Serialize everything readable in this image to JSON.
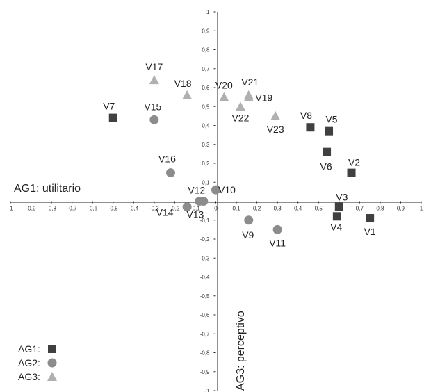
{
  "chart_data": {
    "type": "scatter",
    "xlabel": "AG1: utilitario",
    "ylabel": "AG3: perceptivo",
    "xlim": [
      -1,
      1
    ],
    "ylim": [
      -1,
      1
    ],
    "xticks": [
      "-1",
      "-0,9",
      "-0,8",
      "-0,7",
      "-0,6",
      "-0,5",
      "-0,4",
      "-0,3",
      "-0,2",
      "-0,1",
      "0",
      "0,1",
      "0,2",
      "0,3",
      "0,4",
      "0,5",
      "0,6",
      "0,7",
      "0,8",
      "0,9",
      "1"
    ],
    "yticks": [
      "1",
      "0,9",
      "0,8",
      "0,7",
      "0,6",
      "0,5",
      "0,4",
      "0,3",
      "0,2",
      "0,1",
      "-0,1",
      "-0,2",
      "-0,3",
      "-0,4",
      "-0,5",
      "-0,6",
      "-0,7",
      "-0,8",
      "-0,9",
      "-1"
    ],
    "grid": false,
    "legend_position": "bottom-left",
    "series": [
      {
        "name": "AG1:",
        "marker": "square",
        "color": "#404040",
        "points": [
          {
            "label": "V1",
            "x": 0.75,
            "y": -0.09
          },
          {
            "label": "V2",
            "x": 0.66,
            "y": 0.15
          },
          {
            "label": "V3",
            "x": 0.6,
            "y": -0.03
          },
          {
            "label": "V4",
            "x": 0.59,
            "y": -0.08
          },
          {
            "label": "V5",
            "x": 0.55,
            "y": 0.37
          },
          {
            "label": "V6",
            "x": 0.54,
            "y": 0.26
          },
          {
            "label": "V7",
            "x": -0.5,
            "y": 0.44
          },
          {
            "label": "V8",
            "x": 0.46,
            "y": 0.39
          }
        ]
      },
      {
        "name": "AG2:",
        "marker": "circle",
        "color": "#8c8c8c",
        "points": [
          {
            "label": "V9",
            "x": 0.16,
            "y": -0.1
          },
          {
            "label": "V10",
            "x": 0.0,
            "y": 0.06
          },
          {
            "label": "V11",
            "x": 0.3,
            "y": -0.15
          },
          {
            "label": "V12",
            "x": -0.06,
            "y": 0.0
          },
          {
            "label": "V13",
            "x": -0.08,
            "y": 0.0
          },
          {
            "label": "V14",
            "x": -0.14,
            "y": -0.03
          },
          {
            "label": "V15",
            "x": -0.3,
            "y": 0.43
          },
          {
            "label": "V16",
            "x": -0.22,
            "y": 0.15
          }
        ]
      },
      {
        "name": "AG3:",
        "marker": "triangle",
        "color": "#b0b0b0",
        "points": [
          {
            "label": "V17",
            "x": -0.3,
            "y": 0.64
          },
          {
            "label": "V18",
            "x": -0.14,
            "y": 0.56
          },
          {
            "label": "V19",
            "x": 0.16,
            "y": 0.55
          },
          {
            "label": "V20",
            "x": 0.04,
            "y": 0.55
          },
          {
            "label": "V21",
            "x": 0.16,
            "y": 0.56
          },
          {
            "label": "V22",
            "x": 0.12,
            "y": 0.5
          },
          {
            "label": "V23",
            "x": 0.29,
            "y": 0.45
          }
        ]
      }
    ]
  }
}
